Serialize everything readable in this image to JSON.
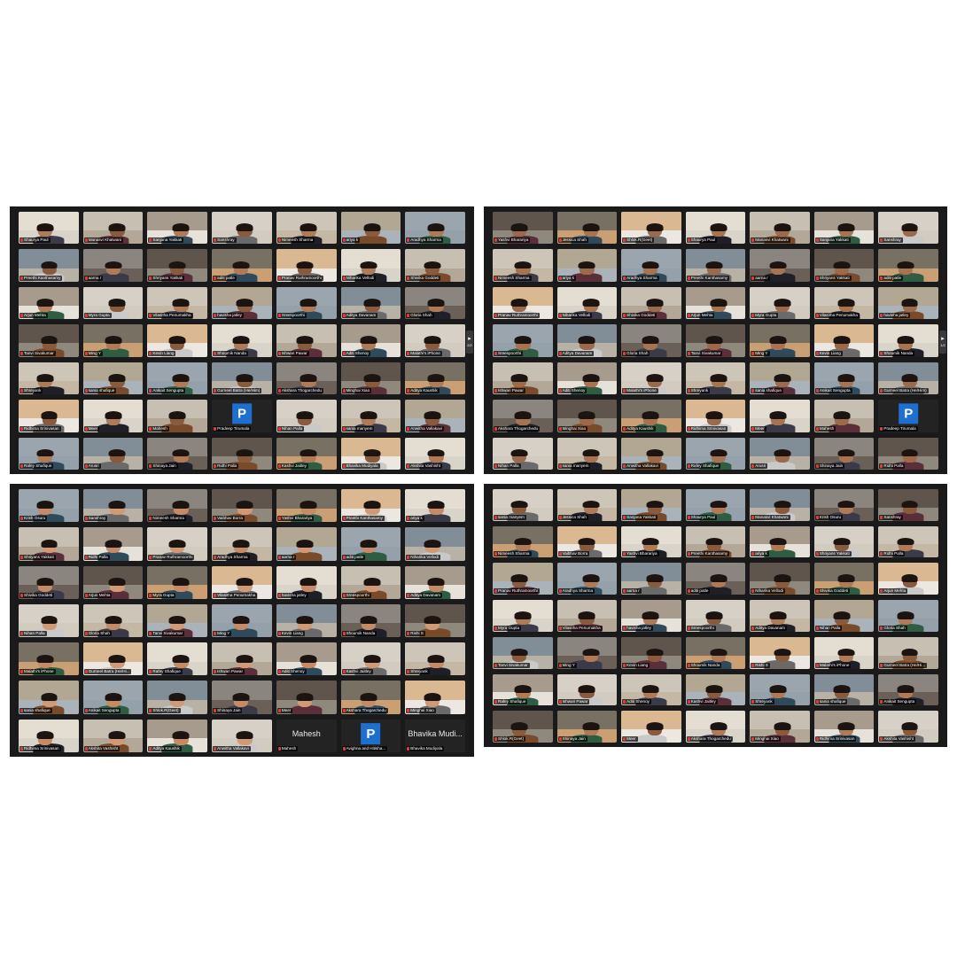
{
  "panels": [
    {
      "id": "top-left",
      "page_indicator": "2/2",
      "tiles": [
        {
          "name": "Shaurya Paul"
        },
        {
          "name": "Manasvi Khatwani"
        },
        {
          "name": "Sanjana Yakkati"
        },
        {
          "name": "Sanshray"
        },
        {
          "name": "Nimeesh Sharma"
        },
        {
          "name": "ariya k"
        },
        {
          "name": "Aradhya Sharma"
        },
        {
          "name": "Preethi Kanthasamy"
        },
        {
          "name": "aarna r"
        },
        {
          "name": "Shriyans Yakkati"
        },
        {
          "name": "aditi patle"
        },
        {
          "name": "Pranav Ruthramoorthi"
        },
        {
          "name": "Niharika Vellodi"
        },
        {
          "name": "Shivika Goddeti"
        },
        {
          "name": "Arjun Mehta"
        },
        {
          "name": "Myra Gupta"
        },
        {
          "name": "Vilasitha Penumakha"
        },
        {
          "name": "havisha jatley"
        },
        {
          "name": "Sreespoorthi"
        },
        {
          "name": "Aditya Davanam"
        },
        {
          "name": "Gloria Shah"
        },
        {
          "name": "Tanvi Sivakumar"
        },
        {
          "name": "Ming Y"
        },
        {
          "name": "Kevin Liang"
        },
        {
          "name": "Shoumik Nanda"
        },
        {
          "name": "Ishwari Pawar"
        },
        {
          "name": "Aditi Shenoy"
        },
        {
          "name": "Malathi's iPhone"
        },
        {
          "name": "Shreyank"
        },
        {
          "name": "sania shafique"
        },
        {
          "name": "Anikait Sengupta"
        },
        {
          "name": "Gurneel Batra (He/Him)"
        },
        {
          "name": "Akshara Thogarchedu"
        },
        {
          "name": "Minghai Xiao"
        },
        {
          "name": "Aditya Kaushik"
        },
        {
          "name": "Ridhima Srinivasan"
        },
        {
          "name": "Meer"
        },
        {
          "name": "Mahesh"
        },
        {
          "name": "Pradeep Tirumala",
          "letter": "P"
        },
        {
          "name": "Nihan Palla"
        },
        {
          "name": "sania manyem"
        },
        {
          "name": "Anwitha Vallakavi"
        },
        {
          "name": "Rafey Shafique"
        },
        {
          "name": "Arusri"
        },
        {
          "name": "Shinaya Jain"
        },
        {
          "name": "Ridhi Palla"
        },
        {
          "name": "Kashvi Jaitley"
        },
        {
          "name": "Bhavika Mudiyala"
        },
        {
          "name": "Akshita Vashisht"
        }
      ]
    },
    {
      "id": "top-right",
      "page_indicator": "1/2",
      "tiles": [
        {
          "name": "Yashvi Bharariya"
        },
        {
          "name": "Jessica Shah"
        },
        {
          "name": "Shlok.R(Geet)"
        },
        {
          "name": "Shaurya Paul"
        },
        {
          "name": "Manasvi Khatwani"
        },
        {
          "name": "Sanjana Yakkati"
        },
        {
          "name": "Sanshray"
        },
        {
          "name": "Nimeesh Sharma"
        },
        {
          "name": "ariya k"
        },
        {
          "name": "Aradhya Sharma"
        },
        {
          "name": "Preethi Kanthasamy"
        },
        {
          "name": "aarna r"
        },
        {
          "name": "Shriyans Yakkati"
        },
        {
          "name": "aditi patle"
        },
        {
          "name": "Pranav Ruthramoorthi"
        },
        {
          "name": "Niharika Vellodi"
        },
        {
          "name": "Shivika Goddeti"
        },
        {
          "name": "Arjun Mehta"
        },
        {
          "name": "Myra Gupta"
        },
        {
          "name": "Vilasitha Penumakha"
        },
        {
          "name": "havisha jatley"
        },
        {
          "name": "Sreespoorthi"
        },
        {
          "name": "Aditya Davanam"
        },
        {
          "name": "Gloria Shah"
        },
        {
          "name": "Tanvi Sivakumar"
        },
        {
          "name": "Ming Y"
        },
        {
          "name": "Kevin Liang"
        },
        {
          "name": "Shoumik Nanda"
        },
        {
          "name": "Ishwari Pawar"
        },
        {
          "name": "Aditi Shenoy"
        },
        {
          "name": "Malathi's iPhone"
        },
        {
          "name": "Shreyank"
        },
        {
          "name": "sania shafique"
        },
        {
          "name": "Anikait Sengupta"
        },
        {
          "name": "Gurneel Batra (He/Him)"
        },
        {
          "name": "Akshara Thogarchedu"
        },
        {
          "name": "Minghai Xiao"
        },
        {
          "name": "Aditya Kaushik"
        },
        {
          "name": "Ridhima Srinivasan"
        },
        {
          "name": "Meer"
        },
        {
          "name": "Mahesh"
        },
        {
          "name": "Pradeep Tirumala",
          "letter": "P"
        },
        {
          "name": "Nihan Palla"
        },
        {
          "name": "sania manyem"
        },
        {
          "name": "Anwitha Vallakavi"
        },
        {
          "name": "Rafey Shafique"
        },
        {
          "name": "Arusri"
        },
        {
          "name": "Shinaya Jain"
        },
        {
          "name": "Ridhi Palla"
        }
      ]
    },
    {
      "id": "bottom-left",
      "tiles": [
        {
          "name": "Krish Osuru"
        },
        {
          "name": "Sanshray"
        },
        {
          "name": "Nimeesh Sharma"
        },
        {
          "name": "Vaibhav Borra"
        },
        {
          "name": "Yashvi Bharariya"
        },
        {
          "name": "Preethi Kanthasamy"
        },
        {
          "name": "ariya k"
        },
        {
          "name": "Shriyans Yakkati"
        },
        {
          "name": "Ridhi Palla"
        },
        {
          "name": "Pranav Ruthramoorthi"
        },
        {
          "name": "Aradhya Sharma"
        },
        {
          "name": "aarna r"
        },
        {
          "name": "aditi patle"
        },
        {
          "name": "Niharika Vellodi"
        },
        {
          "name": "Shivika Goddeti"
        },
        {
          "name": "Arjun Mehta"
        },
        {
          "name": "Myra Gupta"
        },
        {
          "name": "Vilasitha Penumakha"
        },
        {
          "name": "havisha jatley"
        },
        {
          "name": "Sreespoorthi"
        },
        {
          "name": "Aditya Davanam"
        },
        {
          "name": "Nihan Palla"
        },
        {
          "name": "Gloria Shah"
        },
        {
          "name": "Tanvi Sivakumar"
        },
        {
          "name": "Ming Y"
        },
        {
          "name": "Kevin Liang"
        },
        {
          "name": "Shoumik Nanda"
        },
        {
          "name": "Rishi S"
        },
        {
          "name": "Malathi's iPhone"
        },
        {
          "name": "Gurneel Batra (He/Hi..."
        },
        {
          "name": "Rafey Shafique"
        },
        {
          "name": "Ishwari Pawar"
        },
        {
          "name": "Aditi Shenoy"
        },
        {
          "name": "Kashvi Jaitley"
        },
        {
          "name": "Shreyank"
        },
        {
          "name": "sania shafique"
        },
        {
          "name": "Anikait Sengupta"
        },
        {
          "name": "Shlok.R(Geet)"
        },
        {
          "name": "Shinaya Jain"
        },
        {
          "name": "Meer"
        },
        {
          "name": "Akshara Thogarchedu"
        },
        {
          "name": "Minghai Xiao"
        },
        {
          "name": "Ridhima Srinivasan"
        },
        {
          "name": "Akshita Vashisht"
        },
        {
          "name": "Aditya Kaushik"
        },
        {
          "name": "Anwitha Vallakavi"
        },
        {
          "name": "Mahesh",
          "bigname": "Mahesh"
        },
        {
          "name": "Avighna and Hitisha...",
          "letter": "P"
        },
        {
          "name": "Bhavika Mudiyala",
          "bigname": "Bhavika Mudi..."
        }
      ]
    },
    {
      "id": "bottom-right",
      "tiles": [
        {
          "name": "sania manyem"
        },
        {
          "name": "Jessica Shah"
        },
        {
          "name": "Sanjana Yakkati"
        },
        {
          "name": "Shaurya Paul"
        },
        {
          "name": "Manasvi Khatwani"
        },
        {
          "name": "Krish Osuru"
        },
        {
          "name": "Sanshray"
        },
        {
          "name": "Nimeesh Sharma"
        },
        {
          "name": "Vaibhav Borra"
        },
        {
          "name": "Yashvi Bharariya"
        },
        {
          "name": "Preethi Kanthasamy"
        },
        {
          "name": "ariya k"
        },
        {
          "name": "Shriyans Yakkati"
        },
        {
          "name": "Ridhi Palla"
        },
        {
          "name": "Pranav Ruthramoorthi"
        },
        {
          "name": "Aradhya Sharma"
        },
        {
          "name": "aarna r"
        },
        {
          "name": "aditi patle"
        },
        {
          "name": "Niharika Vellodi"
        },
        {
          "name": "Shivika Goddeti"
        },
        {
          "name": "Arjun Mehta"
        },
        {
          "name": "Myra Gupta"
        },
        {
          "name": "Vilasitha Penumakha"
        },
        {
          "name": "havisha jatley"
        },
        {
          "name": "Sreespoorthi"
        },
        {
          "name": "Aditya Davanam"
        },
        {
          "name": "Nihan Palla"
        },
        {
          "name": "Gloria Shah"
        },
        {
          "name": "Tanvi Sivakumar"
        },
        {
          "name": "Ming Y"
        },
        {
          "name": "Kevin Liang"
        },
        {
          "name": "Shoumik Nanda"
        },
        {
          "name": "Rishi S"
        },
        {
          "name": "Malathi's iPhone"
        },
        {
          "name": "Gurneel Batra (He/Hi..."
        },
        {
          "name": "Rafey Shafique"
        },
        {
          "name": "Ishwari Pawar"
        },
        {
          "name": "Aditi Shenoy"
        },
        {
          "name": "Kashvi Jaitley"
        },
        {
          "name": "Shreyank"
        },
        {
          "name": "sania shafique"
        },
        {
          "name": "Anikait Sengupta"
        },
        {
          "name": "Shlok.R(Geet)"
        },
        {
          "name": "Shinaya Jain"
        },
        {
          "name": "Meer"
        },
        {
          "name": "Akshara Thogarchedu"
        },
        {
          "name": "Minghai Xiao"
        },
        {
          "name": "Ridhima Srinivasan"
        },
        {
          "name": "Akshita Vashisht"
        }
      ]
    }
  ],
  "colors": {
    "panel_bg": "#1a1a1a",
    "label_bg": "#000000",
    "muted_mic": "#e23b3b",
    "avatar_blue": "#1f6fd1",
    "active_speaker": "#6fd14b"
  }
}
